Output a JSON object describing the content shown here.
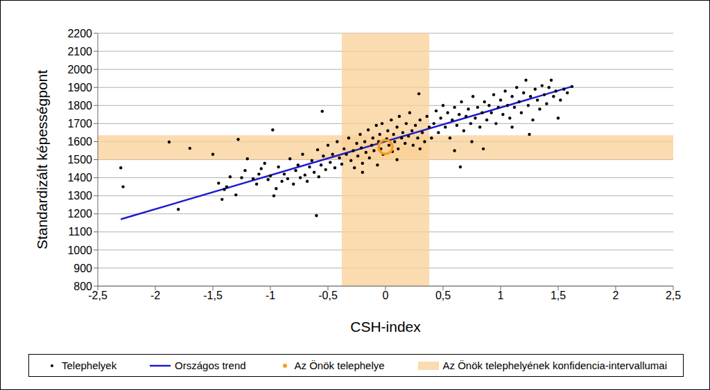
{
  "chart_data": {
    "type": "scatter",
    "x_label": "CSH-index",
    "y_label": "Standardizált képességpont",
    "xlim": [
      -2.5,
      2.5
    ],
    "xticks": [
      {
        "value": -2.5,
        "label": "-2,5"
      },
      -2,
      {
        "value": -1.5,
        "label": "-1,5"
      },
      -1,
      {
        "value": -0.5,
        "label": "-0,5"
      },
      0,
      {
        "value": 0.5,
        "label": "0,5"
      },
      1,
      {
        "value": 1.5,
        "label": "1,5"
      },
      2,
      {
        "value": 2.5,
        "label": "2,5"
      }
    ],
    "ylim": [
      800,
      2200
    ],
    "yticks": [
      800,
      900,
      1000,
      1100,
      1200,
      1300,
      1400,
      1500,
      1600,
      1700,
      1800,
      1900,
      2000,
      2100,
      2200
    ],
    "grid": "y",
    "legend": "bottom",
    "series": [
      {
        "name": "Telephelyek",
        "type": "scatter",
        "marker": "dot",
        "color": "#000000",
        "x": [
          -2.3,
          -2.28,
          -1.88,
          -1.8,
          -1.7,
          -1.5,
          -1.45,
          -1.42,
          -1.4,
          -1.38,
          -1.35,
          -1.3,
          -1.28,
          -1.25,
          -1.22,
          -1.2,
          -1.15,
          -1.12,
          -1.1,
          -1.08,
          -1.05,
          -1.02,
          -1.0,
          -0.98,
          -0.97,
          -0.95,
          -0.93,
          -0.9,
          -0.88,
          -0.85,
          -0.83,
          -0.8,
          -0.78,
          -0.76,
          -0.74,
          -0.72,
          -0.7,
          -0.68,
          -0.66,
          -0.64,
          -0.62,
          -0.6,
          -0.59,
          -0.58,
          -0.56,
          -0.55,
          -0.54,
          -0.52,
          -0.5,
          -0.48,
          -0.46,
          -0.44,
          -0.42,
          -0.4,
          -0.38,
          -0.36,
          -0.34,
          -0.32,
          -0.3,
          -0.28,
          -0.27,
          -0.25,
          -0.24,
          -0.22,
          -0.21,
          -0.2,
          -0.18,
          -0.17,
          -0.15,
          -0.14,
          -0.12,
          -0.11,
          -0.1,
          -0.08,
          -0.07,
          -0.06,
          -0.05,
          -0.04,
          -0.03,
          -0.02,
          0.01,
          0.02,
          0.03,
          0.05,
          0.06,
          0.07,
          0.08,
          0.1,
          0.11,
          0.12,
          0.14,
          0.15,
          0.17,
          0.18,
          0.2,
          0.21,
          0.23,
          0.24,
          0.26,
          0.28,
          0.3,
          0.32,
          0.34,
          0.36,
          0.38,
          0.4,
          0.42,
          0.44,
          0.46,
          0.48,
          0.5,
          0.52,
          0.54,
          0.56,
          0.58,
          0.6,
          0.62,
          0.64,
          0.65,
          0.66,
          0.68,
          0.7,
          0.72,
          0.74,
          0.76,
          0.78,
          0.8,
          0.82,
          0.84,
          0.86,
          0.88,
          0.9,
          0.92,
          0.94,
          0.96,
          0.98,
          1.0,
          1.02,
          1.04,
          1.06,
          1.08,
          1.1,
          1.12,
          1.14,
          1.16,
          1.18,
          1.2,
          1.22,
          1.24,
          1.26,
          1.28,
          1.3,
          1.32,
          1.34,
          1.36,
          1.38,
          1.4,
          1.42,
          1.44,
          1.46,
          1.48,
          1.5,
          1.52,
          1.55,
          1.58,
          1.62,
          0.85,
          1.25,
          0.6,
          0.1,
          -0.2,
          0.3,
          0.75,
          1.1,
          0.29
        ],
        "values": [
          1455,
          1350,
          1598,
          1225,
          1563,
          1530,
          1370,
          1280,
          1335,
          1350,
          1405,
          1305,
          1612,
          1400,
          1440,
          1505,
          1395,
          1365,
          1420,
          1450,
          1480,
          1390,
          1410,
          1665,
          1300,
          1340,
          1460,
          1380,
          1420,
          1395,
          1505,
          1365,
          1440,
          1470,
          1400,
          1530,
          1415,
          1380,
          1460,
          1495,
          1430,
          1190,
          1555,
          1405,
          1470,
          1768,
          1520,
          1445,
          1580,
          1485,
          1530,
          1455,
          1600,
          1510,
          1475,
          1560,
          1530,
          1620,
          1495,
          1550,
          1455,
          1590,
          1520,
          1640,
          1565,
          1480,
          1600,
          1540,
          1665,
          1510,
          1580,
          1620,
          1550,
          1690,
          1470,
          1600,
          1640,
          1560,
          1700,
          1530,
          1615,
          1660,
          1580,
          1720,
          1545,
          1640,
          1600,
          1680,
          1560,
          1740,
          1620,
          1650,
          1590,
          1700,
          1630,
          1760,
          1660,
          1580,
          1690,
          1620,
          1720,
          1650,
          1600,
          1740,
          1680,
          1620,
          1700,
          1770,
          1650,
          1730,
          1800,
          1680,
          1760,
          1620,
          1720,
          1790,
          1690,
          1750,
          1460,
          1820,
          1660,
          1740,
          1780,
          1700,
          1850,
          1730,
          1790,
          1680,
          1760,
          1820,
          1720,
          1800,
          1760,
          1860,
          1700,
          1790,
          1830,
          1750,
          1880,
          1800,
          1730,
          1850,
          1790,
          1900,
          1820,
          1760,
          1870,
          1940,
          1800,
          1850,
          1720,
          1890,
          1830,
          1780,
          1910,
          1860,
          1810,
          1900,
          1940,
          1850,
          1880,
          1730,
          1830,
          1890,
          1870,
          1905,
          1560,
          1640,
          1550,
          1500,
          1430,
          1560,
          1600,
          1680,
          1865
        ]
      },
      {
        "name": "Országos trend",
        "type": "line",
        "color": "#1c1cd0",
        "x": [
          -2.3,
          1.62
        ],
        "values": [
          1170,
          1905
        ]
      },
      {
        "name": "Az Önök telephelye",
        "type": "scatter",
        "marker": "ring",
        "color": "#f5a01a",
        "x": [
          0
        ],
        "values": [
          1570
        ]
      },
      {
        "name": "Az Önök telephelyének konfidencia-intervallumai",
        "type": "band",
        "color": "#f9cf95",
        "x": [
          -0.38,
          0.38
        ],
        "values": [
          1500,
          1635
        ]
      }
    ]
  }
}
